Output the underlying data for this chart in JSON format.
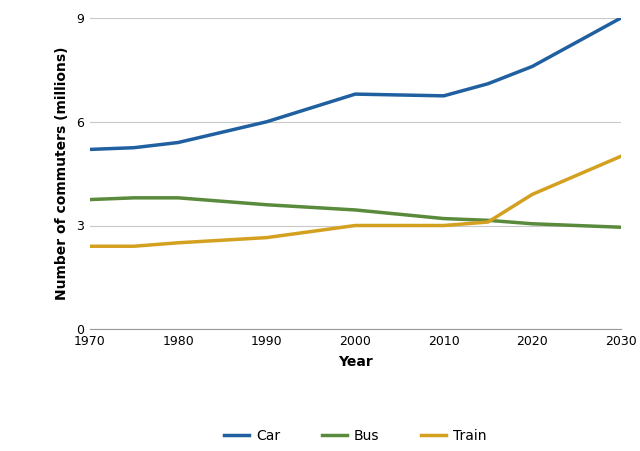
{
  "years": [
    1970,
    1975,
    1980,
    1990,
    2000,
    2010,
    2015,
    2020,
    2030
  ],
  "car": [
    5.2,
    5.25,
    5.4,
    6.0,
    6.8,
    6.75,
    7.1,
    7.6,
    9.0
  ],
  "bus": [
    3.75,
    3.8,
    3.8,
    3.6,
    3.45,
    3.2,
    3.15,
    3.05,
    2.95
  ],
  "train": [
    2.4,
    2.4,
    2.5,
    2.65,
    3.0,
    3.0,
    3.1,
    3.9,
    5.0
  ],
  "car_color": "#2060a0",
  "bus_color": "#5a8a3c",
  "train_color": "#d4a020",
  "xlabel": "Year",
  "ylabel": "Number of commuters (millions)",
  "xlim": [
    1970,
    2030
  ],
  "ylim": [
    0,
    9
  ],
  "yticks": [
    0,
    3,
    6,
    9
  ],
  "xticks": [
    1970,
    1980,
    1990,
    2000,
    2010,
    2020,
    2030
  ],
  "legend_labels": [
    "Car",
    "Bus",
    "Train"
  ],
  "background_color": "#ffffff",
  "grid_color": "#c8c8c8",
  "linewidth": 2.5,
  "tick_fontsize": 9,
  "label_fontsize": 10,
  "legend_fontsize": 10
}
